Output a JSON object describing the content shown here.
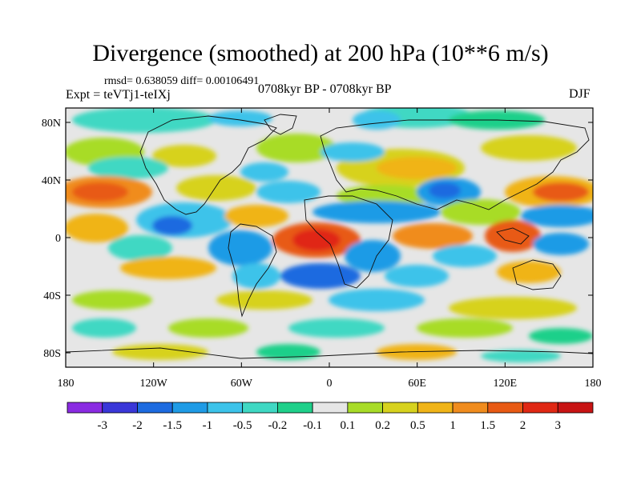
{
  "header": {
    "title": "Divergence (smoothed) at 200 hPa (10**6 m/s)",
    "stats": "rmsd= 0.638059 diff= 0.00106491",
    "experiment": "Expt = teVTj1-teIXj",
    "period": "0708kyr BP - 0708kyr BP",
    "season": "DJF"
  },
  "map": {
    "lat_labels": [
      "80N",
      "40N",
      "0",
      "40S",
      "80S"
    ],
    "lat_values": [
      80,
      40,
      0,
      -40,
      -80
    ],
    "lon_labels": [
      "180",
      "120W",
      "60W",
      "0",
      "60E",
      "120E",
      "180"
    ],
    "lon_values": [
      -180,
      -120,
      -60,
      0,
      60,
      120,
      180
    ],
    "lat_range": [
      -90,
      90
    ],
    "lon_range": [
      -180,
      180
    ]
  },
  "colorbar": {
    "labels": [
      "-3",
      "-2",
      "-1.5",
      "-1",
      "-0.5",
      "-0.2",
      "-0.1",
      "0.1",
      "0.2",
      "0.5",
      "1",
      "1.5",
      "2",
      "3"
    ],
    "colors": [
      "#8a2be2",
      "#3a37d8",
      "#1d6be0",
      "#1f9be6",
      "#3cc3ea",
      "#3fd8c3",
      "#1fd08a",
      "#e6e6e6",
      "#a8dc28",
      "#d7d21e",
      "#f0b418",
      "#f08c1e",
      "#e85a14",
      "#e02814",
      "#c81414"
    ]
  }
}
